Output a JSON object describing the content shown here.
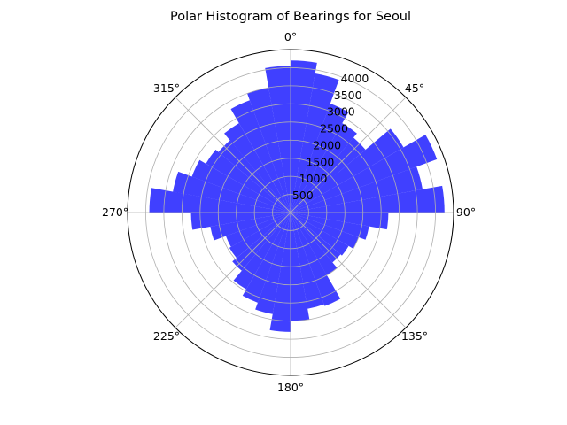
{
  "chart_data": {
    "type": "bar",
    "projection": "polar",
    "title": "Polar Histogram of Bearings for Seoul",
    "theta_zero_location": "N",
    "theta_direction": "clockwise",
    "angle_ticks": [
      "0°",
      "45°",
      "90°",
      "135°",
      "180°",
      "225°",
      "270°",
      "315°"
    ],
    "radial_ticks": [
      500,
      1000,
      1500,
      2000,
      2500,
      3000,
      3500,
      4000
    ],
    "rlim": [
      0,
      4500
    ],
    "bin_width_deg": 10,
    "bins_start_deg": [
      0,
      10,
      20,
      30,
      40,
      50,
      60,
      70,
      80,
      90,
      100,
      110,
      120,
      130,
      140,
      150,
      160,
      170,
      180,
      190,
      200,
      210,
      220,
      230,
      240,
      250,
      260,
      270,
      280,
      290,
      300,
      310,
      320,
      330,
      340,
      350
    ],
    "values": [
      4200,
      3900,
      3200,
      2850,
      2700,
      3600,
      4300,
      3700,
      4250,
      2700,
      2200,
      2000,
      1850,
      1800,
      2000,
      2750,
      2700,
      3000,
      3300,
      2850,
      2650,
      2450,
      2100,
      1950,
      1900,
      2250,
      2750,
      3900,
      3300,
      2900,
      2700,
      2600,
      2850,
      3300,
      3500,
      4050
    ],
    "bar_color": "#0000ff",
    "bar_alpha": 0.75,
    "grid": true
  }
}
